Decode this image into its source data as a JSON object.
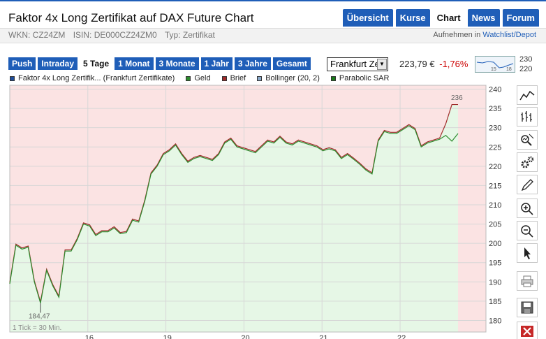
{
  "title": "Faktor 4x Long Zertifikat auf DAX Future Chart",
  "nav": {
    "tabs": [
      "Übersicht",
      "Kurse",
      "Chart",
      "News",
      "Forum"
    ],
    "active": "Chart"
  },
  "info": {
    "wkn": "WKN: CZ24ZM",
    "isin": "ISIN: DE000CZ24ZM0",
    "typ": "Typ: Zertifikat"
  },
  "watchlist": {
    "prefix": "Aufnehmen in",
    "link": "Watchlist/Depot"
  },
  "ranges": {
    "items": [
      "Push",
      "Intraday",
      "5 Tage",
      "1 Monat",
      "3 Monate",
      "1 Jahr",
      "3 Jahre",
      "Gesamt"
    ],
    "active": "5 Tage"
  },
  "exchange": {
    "selected": "Frankfurt Ze"
  },
  "quote": {
    "price": "223,79 €",
    "change": "-1,76%"
  },
  "sparkline": {
    "high": "230",
    "low": "220",
    "mark1": "15",
    "mark2": "18"
  },
  "legend": [
    {
      "label": "Faktor 4x Long Zertifik... (Frankfurt Zertifikate)",
      "color": "#1f4e9a"
    },
    {
      "label": "Geld",
      "color": "#2e8b2e"
    },
    {
      "label": "Brief",
      "color": "#a02a2a"
    },
    {
      "label": "Bollinger (20, 2)",
      "color": "#8aa8c8"
    },
    {
      "label": "Parabolic SAR",
      "color": "#1a7a1a"
    }
  ],
  "colors": {
    "accent": "#1f5eb8",
    "negative": "#cc0000",
    "area_up": "#e6f7e6",
    "area_down": "#fbe3e3"
  },
  "chart_data": {
    "type": "line",
    "tick_note": "1 Tick = 30 Min.",
    "ylim": [
      177,
      241
    ],
    "y_ticks": [
      "180",
      "185",
      "190",
      "195",
      "200",
      "205",
      "210",
      "215",
      "220",
      "225",
      "230",
      "235",
      "240"
    ],
    "x_ticks": [
      {
        "label": "16.",
        "at": 10
      },
      {
        "label": "19.",
        "at": 20
      },
      {
        "label": "20.",
        "at": 30
      },
      {
        "label": "21.",
        "at": 40
      },
      {
        "label": "22.",
        "at": 50
      }
    ],
    "xlim": [
      0,
      61
    ],
    "low_label": "184,47",
    "high_label": "236",
    "series": [
      {
        "name": "Geld",
        "values": [
          189.5,
          199.5,
          198.5,
          199,
          190,
          184.5,
          193,
          189,
          186,
          198,
          198,
          201,
          205,
          204.5,
          202,
          203,
          203,
          204,
          202.5,
          202.8,
          206,
          205.5,
          211,
          218,
          220,
          223,
          224,
          225.5,
          223,
          221,
          222,
          222.5,
          222,
          221.5,
          223,
          226,
          227,
          225,
          224.5,
          224,
          223.5,
          225,
          226.5,
          226,
          227.5,
          226,
          225.5,
          226.5,
          226,
          225.5,
          225,
          224,
          224.5,
          224,
          222,
          223,
          221.8,
          220.5,
          219,
          218,
          226.5,
          229,
          228.5,
          228.5,
          229.5,
          230.5,
          229.5,
          225,
          226,
          226.5,
          227,
          228,
          226.5,
          228.5
        ]
      },
      {
        "name": "Brief",
        "values": [
          189.8,
          199.8,
          198.8,
          199.3,
          190.3,
          184.8,
          193.3,
          189.3,
          186.3,
          198.3,
          198.3,
          201.3,
          205.3,
          204.8,
          202.3,
          203.3,
          203.3,
          204.3,
          202.8,
          203.1,
          206.3,
          205.8,
          211.3,
          218.3,
          220.3,
          223.3,
          224.3,
          225.8,
          223.3,
          221.3,
          222.3,
          222.8,
          222.3,
          221.8,
          223.3,
          226.3,
          227.3,
          225.3,
          224.8,
          224.3,
          223.8,
          225.3,
          226.8,
          226.3,
          227.8,
          226.3,
          225.8,
          226.8,
          226.3,
          225.8,
          225.3,
          224.3,
          224.8,
          224.3,
          222.3,
          223.3,
          222.1,
          220.8,
          219.3,
          218.3,
          226.8,
          229.3,
          228.8,
          228.8,
          229.8,
          230.8,
          229.8,
          225.3,
          226.3,
          226.8,
          227.3,
          231,
          236,
          236
        ]
      }
    ]
  }
}
